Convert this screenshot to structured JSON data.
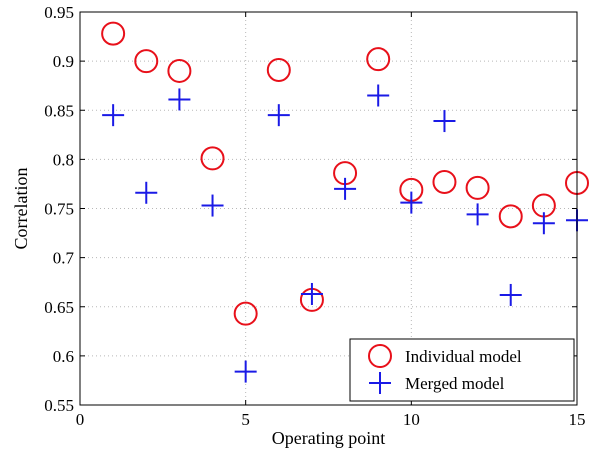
{
  "chart_data": {
    "type": "scatter",
    "xlabel": "Operating point",
    "ylabel": "Correlation",
    "xlim": [
      0,
      15
    ],
    "ylim": [
      0.55,
      0.95
    ],
    "xticks": [
      0,
      5,
      10,
      15
    ],
    "xtick_labels": [
      "0",
      "5",
      "10",
      "15"
    ],
    "yticks": [
      0.55,
      0.6,
      0.65,
      0.7,
      0.75,
      0.8,
      0.85,
      0.9,
      0.95
    ],
    "ytick_labels": [
      "0.55",
      "0.6",
      "0.65",
      "0.7",
      "0.75",
      "0.8",
      "0.85",
      "0.9",
      "0.95"
    ],
    "grid": true,
    "legend_position": "bottom-right",
    "series": [
      {
        "name": "Individual model",
        "marker": "circle",
        "color": "#e8101a",
        "x": [
          1,
          2,
          3,
          4,
          5,
          6,
          7,
          8,
          9,
          10,
          11,
          12,
          13,
          14,
          15
        ],
        "y": [
          0.928,
          0.9,
          0.89,
          0.801,
          0.643,
          0.891,
          0.657,
          0.786,
          0.902,
          0.769,
          0.777,
          0.771,
          0.742,
          0.753,
          0.776
        ]
      },
      {
        "name": "Merged model",
        "marker": "plus",
        "color": "#1a1ae6",
        "x": [
          1,
          2,
          3,
          4,
          5,
          6,
          7,
          8,
          9,
          10,
          11,
          12,
          13,
          14,
          15
        ],
        "y": [
          0.845,
          0.766,
          0.861,
          0.753,
          0.584,
          0.845,
          0.663,
          0.77,
          0.865,
          0.756,
          0.839,
          0.744,
          0.662,
          0.735,
          0.738
        ]
      }
    ]
  }
}
